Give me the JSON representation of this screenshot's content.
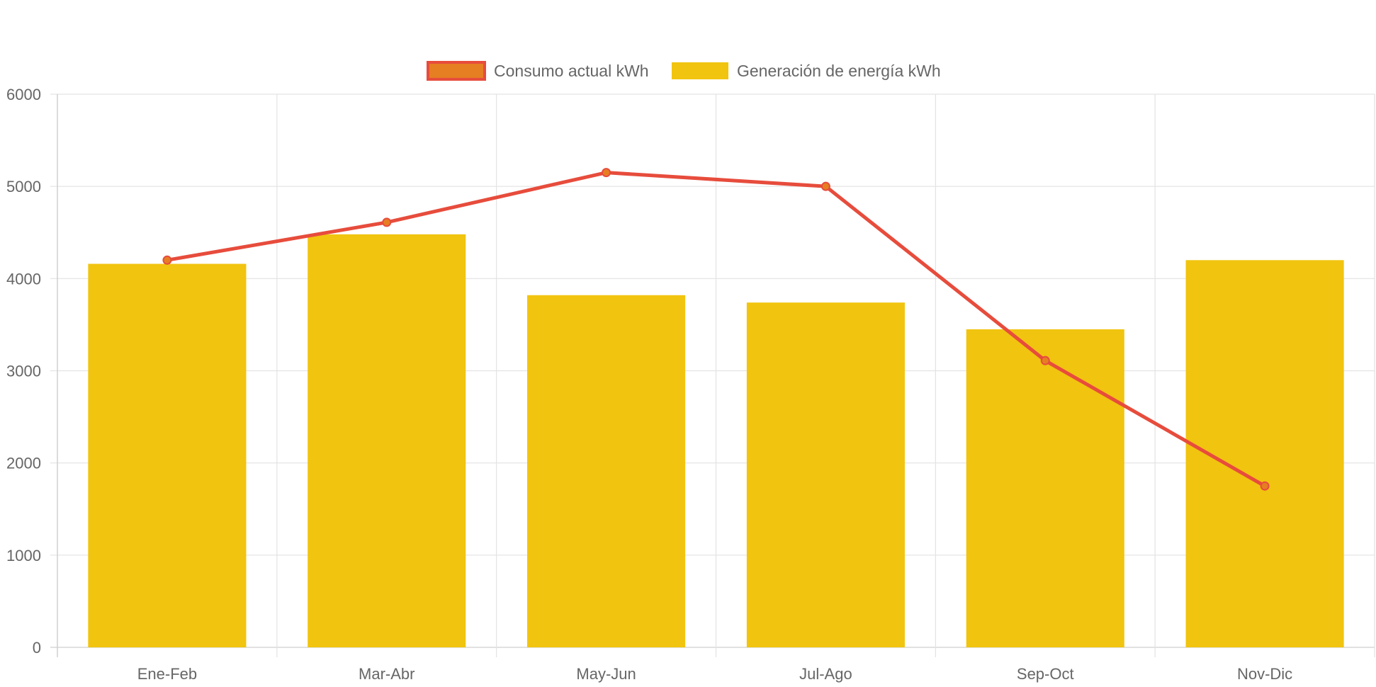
{
  "chart_data": {
    "type": "bar",
    "categories": [
      "Ene-Feb",
      "Mar-Abr",
      "May-Jun",
      "Jul-Ago",
      "Sep-Oct",
      "Nov-Dic"
    ],
    "series": [
      {
        "name": "Consumo actual kWh",
        "type": "line",
        "values": [
          4200,
          4610,
          5150,
          5000,
          3110,
          1750
        ],
        "color": "#e74c3c",
        "point_color": "#e67e22"
      },
      {
        "name": "Generación de energía kWh",
        "type": "bar",
        "values": [
          4160,
          4480,
          3820,
          3740,
          3450,
          4200
        ],
        "color": "#f1c40f"
      }
    ],
    "yticks": [
      0,
      1000,
      2000,
      3000,
      4000,
      5000,
      6000
    ],
    "ylim": [
      0,
      6000
    ],
    "title": "",
    "xlabel": "",
    "ylabel": "",
    "grid": true,
    "legend": "top"
  }
}
